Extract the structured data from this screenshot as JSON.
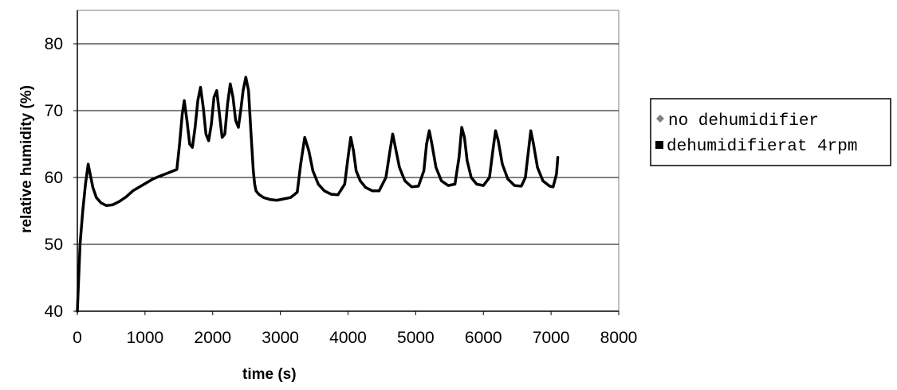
{
  "chart_data": {
    "type": "line",
    "title": "",
    "xlabel": "time (s)",
    "ylabel": "relative humidity (%)",
    "xlim": [
      0,
      8000
    ],
    "ylim": [
      40,
      85
    ],
    "x_ticks": [
      0,
      1000,
      2000,
      3000,
      4000,
      5000,
      6000,
      7000,
      8000
    ],
    "x_tick_labels": [
      "0",
      "1000",
      "2000",
      "3000",
      "4000",
      "5000",
      "6000",
      "7000",
      "8000"
    ],
    "y_ticks": [
      40,
      50,
      60,
      70,
      80
    ],
    "y_tick_labels": [
      "40",
      "50",
      "60",
      "70",
      "80"
    ],
    "grid": "horizontal",
    "legend_position": "right",
    "series": [
      {
        "name": "no dehumidifier",
        "marker": "diamond",
        "color": "#808080",
        "x": [],
        "y": []
      },
      {
        "name": "dehumidifierat 4rpm",
        "marker": "square",
        "color": "#000000",
        "x": [
          0,
          40,
          80,
          120,
          160,
          190,
          230,
          280,
          350,
          430,
          520,
          620,
          720,
          820,
          920,
          1020,
          1120,
          1220,
          1320,
          1420,
          1470,
          1510,
          1550,
          1580,
          1620,
          1660,
          1700,
          1740,
          1780,
          1820,
          1860,
          1900,
          1940,
          1980,
          2020,
          2060,
          2100,
          2140,
          2180,
          2220,
          2260,
          2300,
          2340,
          2380,
          2420,
          2450,
          2490,
          2530,
          2570,
          2600,
          2620,
          2640,
          2680,
          2750,
          2850,
          2950,
          3050,
          3150,
          3250,
          3300,
          3360,
          3420,
          3480,
          3560,
          3650,
          3750,
          3850,
          3950,
          4000,
          4040,
          4080,
          4120,
          4180,
          4260,
          4360,
          4460,
          4560,
          4620,
          4660,
          4700,
          4760,
          4840,
          4940,
          5040,
          5120,
          5160,
          5200,
          5240,
          5300,
          5380,
          5480,
          5580,
          5640,
          5680,
          5720,
          5760,
          5820,
          5900,
          6000,
          6090,
          6140,
          6180,
          6220,
          6280,
          6360,
          6460,
          6560,
          6620,
          6660,
          6700,
          6740,
          6800,
          6880,
          6980,
          7030,
          7080,
          7100
        ],
        "y": [
          40,
          50,
          55,
          59,
          62,
          60.5,
          58.5,
          57,
          56.2,
          55.8,
          55.9,
          56.4,
          57.1,
          58,
          58.6,
          59.2,
          59.8,
          60.2,
          60.6,
          61,
          61.2,
          65,
          69.5,
          71.5,
          68.5,
          65,
          64.5,
          67.5,
          71.5,
          73.5,
          70.5,
          66.5,
          65.5,
          68,
          72,
          73,
          69.5,
          66,
          66.5,
          71,
          74,
          72,
          68.5,
          67.5,
          70.5,
          73,
          75,
          73,
          66,
          61,
          59,
          58,
          57.5,
          57,
          56.7,
          56.6,
          56.8,
          57,
          57.8,
          62,
          66,
          64,
          61,
          59,
          58,
          57.5,
          57.4,
          59,
          63,
          66,
          64,
          61,
          59.5,
          58.5,
          58,
          58,
          60,
          64,
          66.5,
          64.5,
          61.5,
          59.5,
          58.6,
          58.7,
          61,
          65,
          67,
          65,
          61.5,
          59.5,
          58.8,
          59,
          63,
          67.5,
          66,
          62.5,
          60,
          59,
          58.8,
          60,
          64,
          67,
          65.5,
          62,
          59.8,
          58.8,
          58.7,
          60,
          63.5,
          67,
          65,
          61.5,
          59.5,
          58.7,
          58.6,
          60.5,
          63
        ]
      }
    ]
  }
}
